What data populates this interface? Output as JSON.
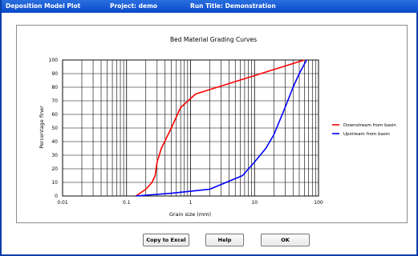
{
  "window": {
    "title": "Deposition Model Plot",
    "project": "Project: demo",
    "run_title": "Run Title: Demonstration"
  },
  "buttons": {
    "copy_to_excel": "Copy to Excel",
    "help": "Help",
    "ok": "OK"
  },
  "chart_data": {
    "type": "line",
    "title": "Bed Material Grading Curves",
    "xlabel": "Grain size (mm)",
    "ylabel": "Percentage finer",
    "xscale": "log",
    "xlim": [
      0.01,
      100
    ],
    "ylim": [
      0,
      100
    ],
    "xticks": [
      "0.01",
      "0.1",
      "1",
      "10",
      "100"
    ],
    "yticks": [
      "0",
      "10",
      "20",
      "30",
      "40",
      "50",
      "60",
      "70",
      "80",
      "90",
      "100"
    ],
    "grid": true,
    "legend_position": "right",
    "series": [
      {
        "name": "Downstream from basin",
        "color": "#ff0000",
        "x": [
          0.14,
          0.2,
          0.25,
          0.28,
          0.3,
          0.35,
          0.5,
          0.7,
          1.2,
          60
        ],
        "y": [
          0,
          5,
          10,
          15,
          25,
          35,
          50,
          65,
          75,
          100
        ]
      },
      {
        "name": "Upstream from basin",
        "color": "#0000ff",
        "x": [
          0.14,
          0.5,
          2,
          6.5,
          10,
          15,
          20,
          30,
          40,
          50,
          65
        ],
        "y": [
          0,
          2,
          5,
          15,
          25,
          35,
          45,
          65,
          80,
          90,
          100
        ]
      }
    ]
  }
}
